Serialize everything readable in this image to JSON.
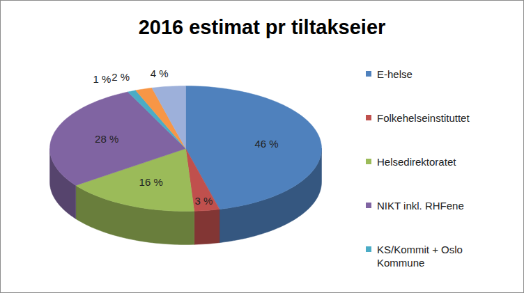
{
  "chart_data": {
    "type": "pie",
    "title": "2016 estimat pr tiltakseier",
    "categories": [
      "E-helse",
      "Folkehelseinstituttet",
      "Helsedirektoratet",
      "NIKT inkl. RHFene",
      "KS/Kommit + Oslo Kommune",
      null,
      null
    ],
    "values": [
      46,
      3,
      16,
      28,
      1,
      2,
      4
    ],
    "value_labels": [
      "46 %",
      "3 %",
      "16 %",
      "28 %",
      "1 %",
      "2 %",
      "4 %"
    ],
    "colors": [
      "#4f81bd",
      "#c0504d",
      "#9bbb59",
      "#8064a2",
      "#4bacc6",
      "#f79646",
      "#9db0da"
    ],
    "data_labels": true,
    "legend": "right"
  }
}
